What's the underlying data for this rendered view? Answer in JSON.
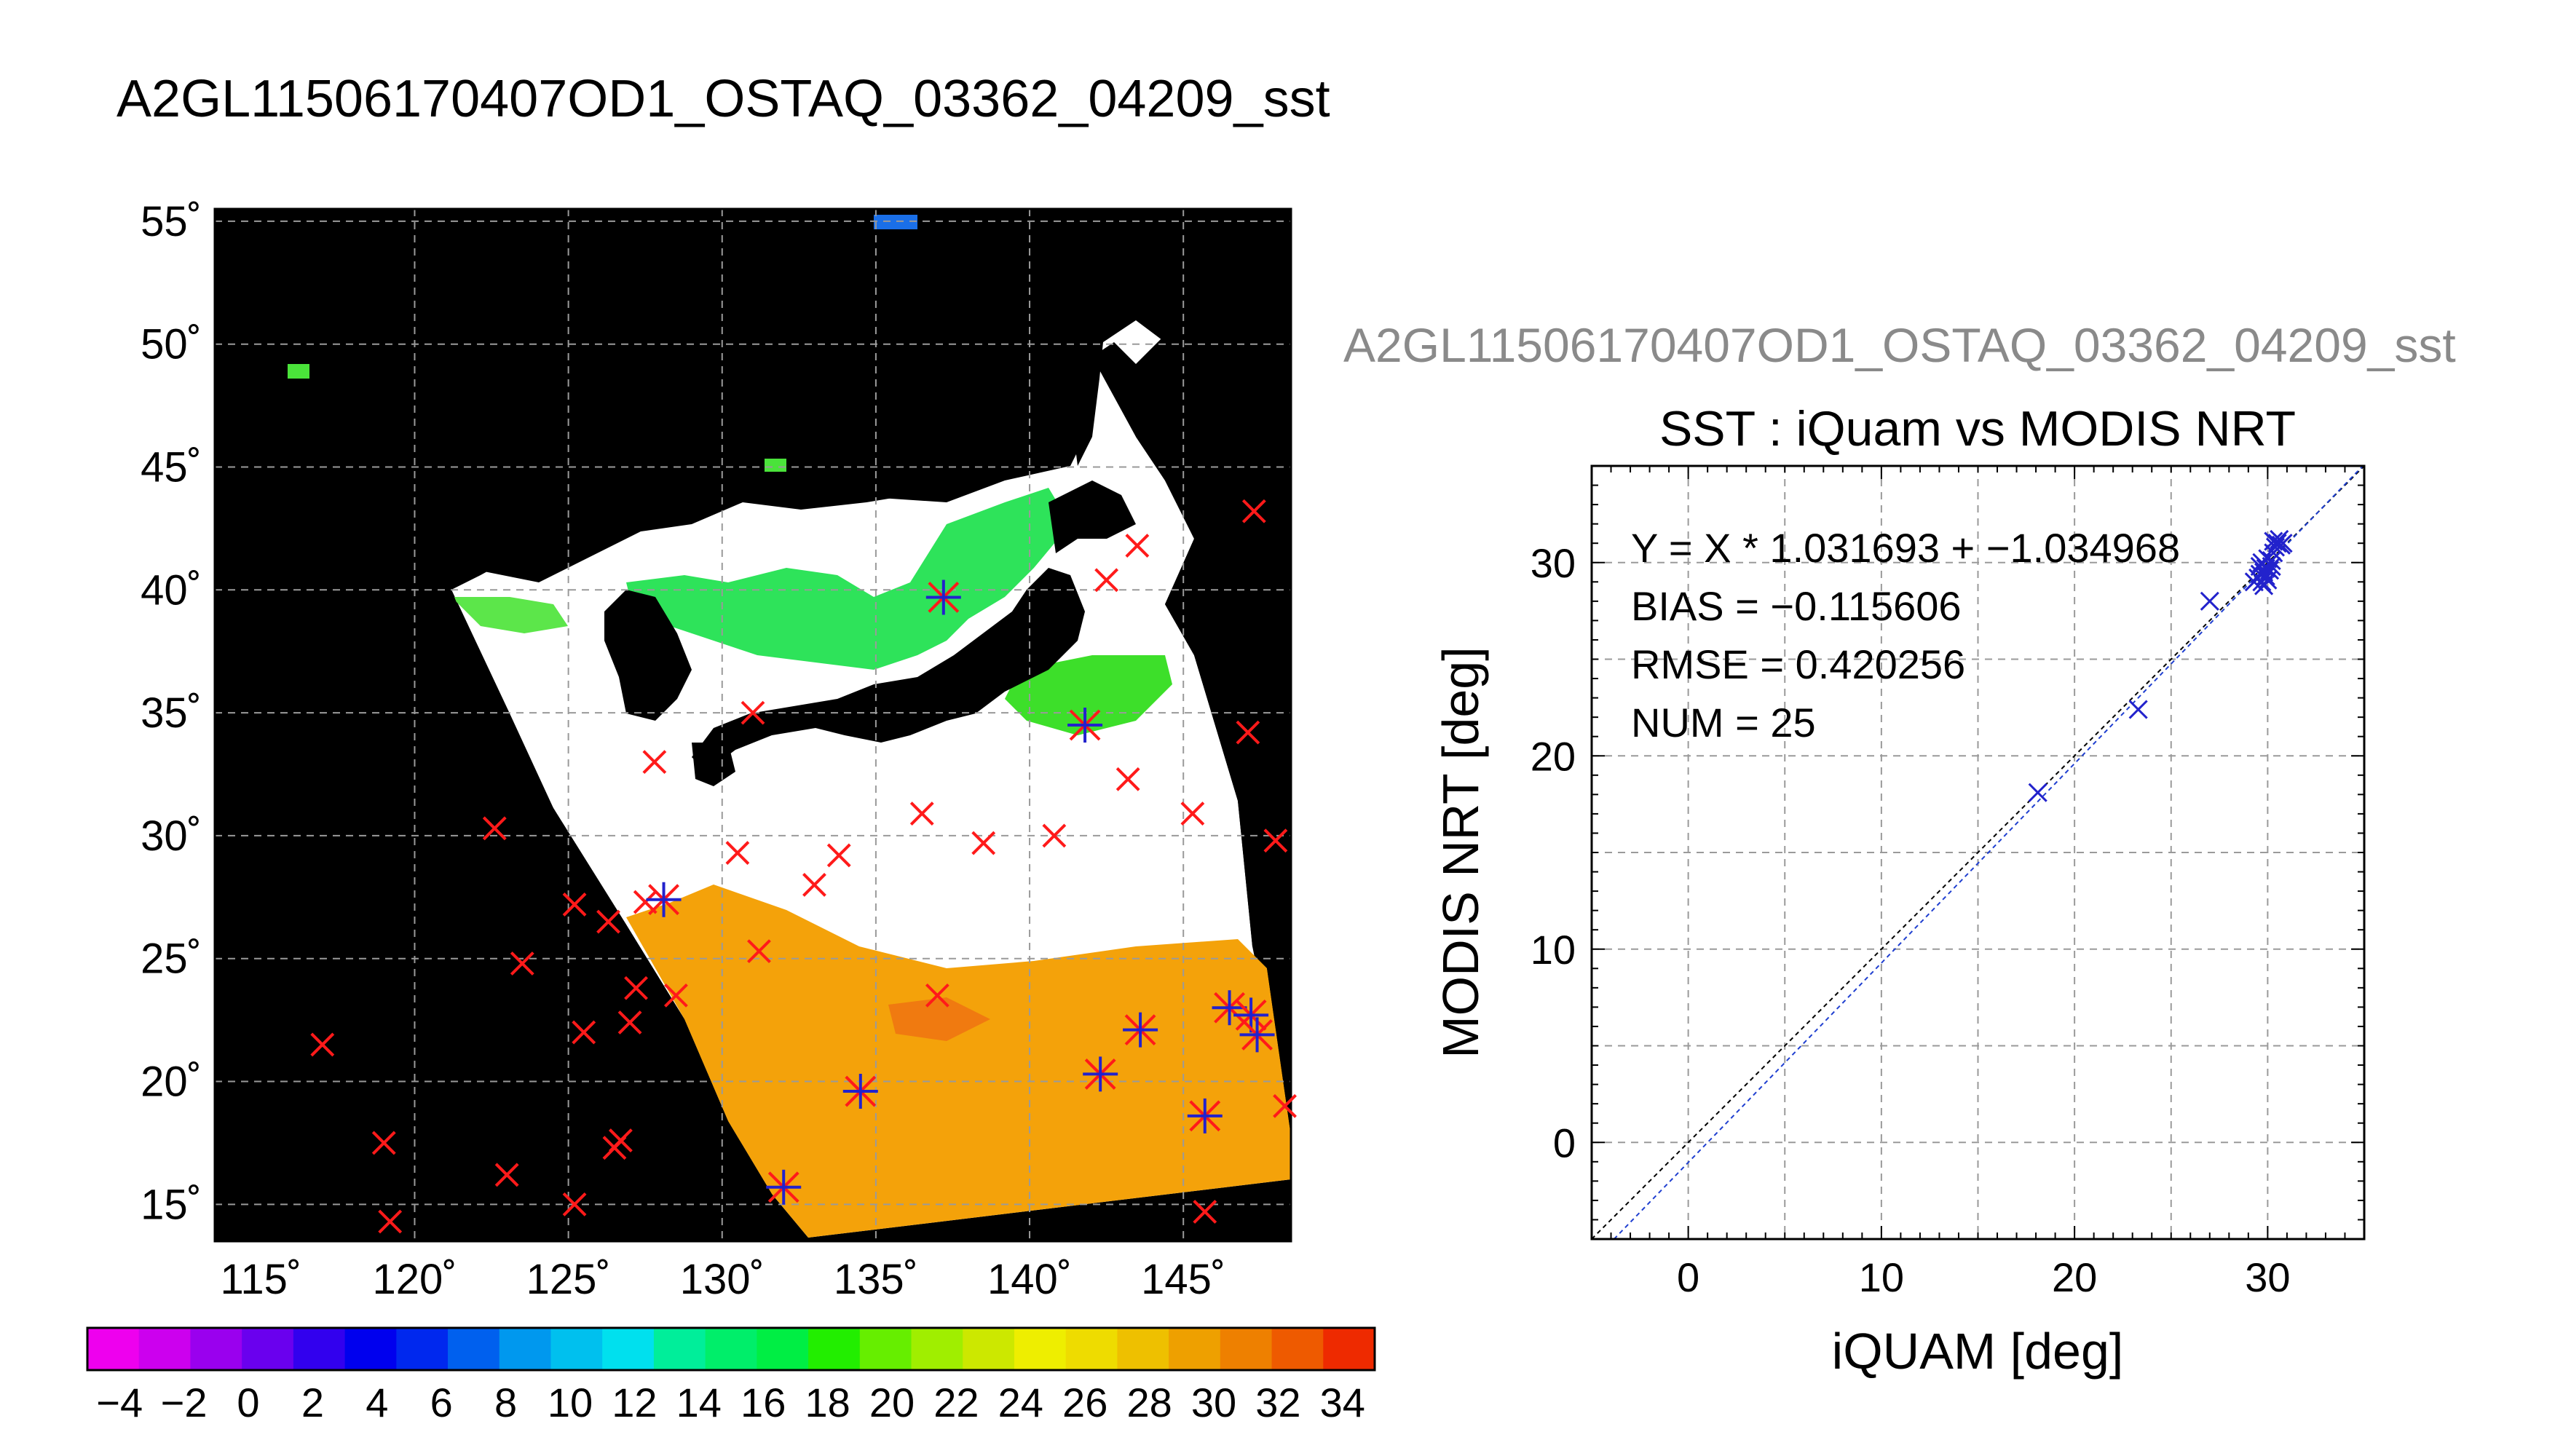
{
  "main_title": "A2GL11506170407OD1_OSTAQ_03362_04209_sst",
  "scatter_header": "A2GL11506170407OD1_OSTAQ_03362_04209_sst",
  "colors": {
    "land": "#000000",
    "cloud": "#ffffff",
    "marker_red": "#ff1a1a",
    "marker_blue": "#2222cc",
    "fit_line": "#1f3fd0",
    "one_to_one": "#000000",
    "grid": "#9a9a9a"
  },
  "colorbar": {
    "ticks": [
      "−4",
      "−2",
      "0",
      "2",
      "4",
      "6",
      "8",
      "10",
      "12",
      "14",
      "16",
      "18",
      "20",
      "22",
      "24",
      "26",
      "28",
      "30",
      "32",
      "34"
    ],
    "range": [
      -5,
      35
    ],
    "colors": [
      "#ee00ee",
      "#cc00ee",
      "#9a00ee",
      "#6a00ee",
      "#3200ee",
      "#0000ee",
      "#0028ee",
      "#0060ee",
      "#0098ee",
      "#00c0ee",
      "#00e0ee",
      "#00ee9a",
      "#00ee6a",
      "#00ee44",
      "#22ee00",
      "#66ee00",
      "#a0ee00",
      "#cce800",
      "#eeee00",
      "#eedc00",
      "#eec000",
      "#eea000",
      "#ee8000",
      "#ee5a00",
      "#ee2a00"
    ]
  },
  "map": {
    "lon_labels": [
      "115˚",
      "120˚",
      "125˚",
      "130˚",
      "135˚",
      "140˚",
      "145˚"
    ],
    "lat_labels": [
      "55˚",
      "50˚",
      "45˚",
      "40˚",
      "35˚",
      "30˚",
      "25˚",
      "20˚",
      "15˚"
    ],
    "lon_range": [
      113.5,
      148.5
    ],
    "lat_range": [
      13.5,
      55.5
    ],
    "red_x": [
      [
        117,
        21.5
      ],
      [
        119,
        17.5
      ],
      [
        119.2,
        14.3
      ],
      [
        123,
        16.2
      ],
      [
        122.6,
        30.3
      ],
      [
        123.5,
        24.8
      ],
      [
        125.2,
        27.2
      ],
      [
        125.5,
        22
      ],
      [
        125.2,
        15
      ],
      [
        126.3,
        26.5
      ],
      [
        126.5,
        17.3
      ],
      [
        126.7,
        17.6
      ],
      [
        127,
        22.4
      ],
      [
        127.2,
        23.8
      ],
      [
        127.5,
        27.3
      ],
      [
        127.8,
        33
      ],
      [
        128.5,
        23.5
      ],
      [
        130.5,
        29.3
      ],
      [
        131,
        35
      ],
      [
        131.2,
        25.3
      ],
      [
        133,
        28
      ],
      [
        133.8,
        29.2
      ],
      [
        136.5,
        30.9
      ],
      [
        137,
        23.5
      ],
      [
        138.5,
        29.7
      ],
      [
        140.8,
        30
      ],
      [
        142.5,
        40.4
      ],
      [
        143.2,
        32.3
      ],
      [
        143.5,
        41.8
      ],
      [
        145.3,
        30.9
      ],
      [
        145.7,
        14.7
      ],
      [
        147.1,
        34.2
      ],
      [
        147.3,
        43.2
      ],
      [
        148,
        29.8
      ],
      [
        148.3,
        19
      ]
    ],
    "asterisks": [
      [
        128.1,
        27.4
      ],
      [
        132,
        15.7
      ],
      [
        134.5,
        19.6
      ],
      [
        137.2,
        39.7
      ],
      [
        141.8,
        34.5
      ],
      [
        142.3,
        20.3
      ],
      [
        143.6,
        22.1
      ],
      [
        145.7,
        18.6
      ],
      [
        146.5,
        23
      ],
      [
        147.2,
        22.7
      ],
      [
        147.4,
        21.9
      ]
    ]
  },
  "chart_data": {
    "type": "scatter",
    "title": "SST : iQuam vs MODIS NRT",
    "xlabel": "iQUAM [deg]",
    "ylabel": "MODIS NRT [deg]",
    "xlim": [
      -5,
      35
    ],
    "ylim": [
      -5,
      35
    ],
    "xticks": [
      0,
      10,
      20,
      30
    ],
    "yticks": [
      0,
      10,
      20,
      30
    ],
    "grid": true,
    "annotations": [
      "Y = X * 1.031693 + −1.034968",
      "BIAS = −0.115606",
      "RMSE = 0.420256",
      "NUM = 25"
    ],
    "fit": {
      "slope": 1.031693,
      "intercept": -1.034968
    },
    "points": [
      [
        18.1,
        18.1
      ],
      [
        23.3,
        22.4
      ],
      [
        27.0,
        28.0
      ],
      [
        29.3,
        29.0
      ],
      [
        29.5,
        29.2
      ],
      [
        29.6,
        29.4
      ],
      [
        29.6,
        29.8
      ],
      [
        29.7,
        29.0
      ],
      [
        29.7,
        30.0
      ],
      [
        29.8,
        29.5
      ],
      [
        29.8,
        28.8
      ],
      [
        29.9,
        29.3
      ],
      [
        29.9,
        29.7
      ],
      [
        30.0,
        30.2
      ],
      [
        30.0,
        29.1
      ],
      [
        30.1,
        29.6
      ],
      [
        30.2,
        29.8
      ],
      [
        30.2,
        30.1
      ],
      [
        30.3,
        30.5
      ],
      [
        30.3,
        31.1
      ],
      [
        30.4,
        30.8
      ],
      [
        30.5,
        31.0
      ],
      [
        30.6,
        31.2
      ],
      [
        30.7,
        30.9
      ],
      [
        30.8,
        31.0
      ]
    ]
  }
}
